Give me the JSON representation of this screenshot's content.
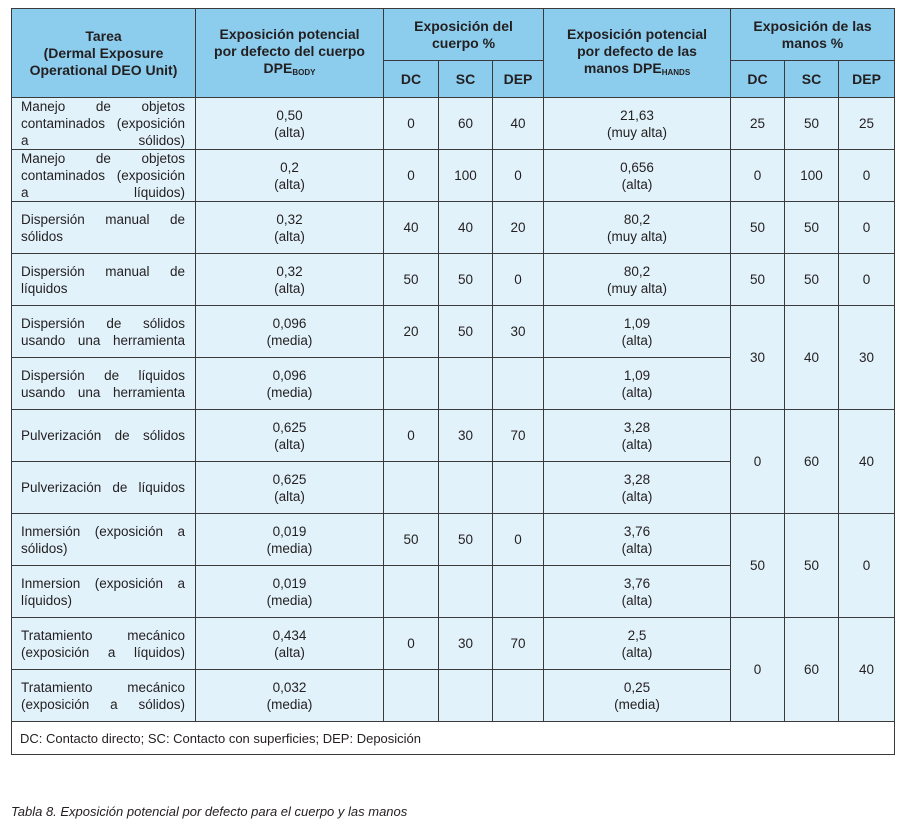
{
  "headers": {
    "task": [
      "Tarea",
      "(Dermal Exposure",
      "Operational DEO Unit)"
    ],
    "dpe_body": [
      "Exposición potencial",
      "por defecto del cuerpo",
      "DPE"
    ],
    "dpe_body_sub": "BODY",
    "body_pct": "Exposición del cuerpo %",
    "dpe_hands": [
      "Exposición potencial",
      "por defecto de las",
      "manos DPE"
    ],
    "dpe_hands_sub": "HANDS",
    "hands_pct": "Exposición de las manos %",
    "dc": "DC",
    "sc": "SC",
    "dep": "DEP"
  },
  "rows": [
    {
      "task": "Manejo de objetos contaminados (exposición a sólidos)",
      "body_val": "0,50",
      "body_level": "(alta)",
      "b": [
        "0",
        "60",
        "40"
      ],
      "hands_val": "21,63",
      "hands_level": "(muy alta)",
      "h": [
        "25",
        "50",
        "25"
      ],
      "hspan": 1
    },
    {
      "task": "Manejo de objetos contaminados (exposición a líquidos)",
      "body_val": "0,2",
      "body_level": "(alta)",
      "b": [
        "0",
        "100",
        "0"
      ],
      "hands_val": "0,656",
      "hands_level": "(alta)",
      "h": [
        "0",
        "100",
        "0"
      ],
      "hspan": 1
    },
    {
      "task": "Dispersión manual de sólidos",
      "body_val": "0,32",
      "body_level": "(alta)",
      "b": [
        "40",
        "40",
        "20"
      ],
      "hands_val": "80,2",
      "hands_level": "(muy alta)",
      "h": [
        "50",
        "50",
        "0"
      ],
      "hspan": 1
    },
    {
      "task": "Dispersión manual de líquidos",
      "body_val": "0,32",
      "body_level": "(alta)",
      "b": [
        "50",
        "50",
        "0"
      ],
      "hands_val": "80,2",
      "hands_level": "(muy alta)",
      "h": [
        "50",
        "50",
        "0"
      ],
      "hspan": 1
    },
    {
      "task": "Dispersión de sólidos usando una herramienta",
      "body_val": "0,096",
      "body_level": "(media)",
      "b": [
        "20",
        "50",
        "30"
      ],
      "hands_val": "1,09",
      "hands_level": "(alta)",
      "h": [
        "30",
        "40",
        "30"
      ],
      "hspan": 2
    },
    {
      "task": "Dispersión de líquidos usando una herramienta",
      "body_val": "0,096",
      "body_level": "(media)",
      "b": [
        "",
        "",
        ""
      ],
      "hands_val": "1,09",
      "hands_level": "(alta)",
      "h": null,
      "hspan": 0
    },
    {
      "task": "Pulverización de sólidos",
      "body_val": "0,625",
      "body_level": "(alta)",
      "b": [
        "0",
        "30",
        "70"
      ],
      "hands_val": "3,28",
      "hands_level": "(alta)",
      "h": [
        "0",
        "60",
        "40"
      ],
      "hspan": 2
    },
    {
      "task": "Pulverización de líquidos",
      "body_val": "0,625",
      "body_level": "(alta)",
      "b": [
        "",
        "",
        ""
      ],
      "hands_val": "3,28",
      "hands_level": "(alta)",
      "h": null,
      "hspan": 0
    },
    {
      "task": "Inmersión (exposición a sólidos)",
      "body_val": "0,019",
      "body_level": "(media)",
      "b": [
        "50",
        "50",
        "0"
      ],
      "hands_val": "3,76",
      "hands_level": "(alta)",
      "h": [
        "50",
        "50",
        "0"
      ],
      "hspan": 2
    },
    {
      "task": "Inmersion (exposición a líquidos)",
      "body_val": "0,019",
      "body_level": "(media)",
      "b": [
        "",
        "",
        ""
      ],
      "hands_val": "3,76",
      "hands_level": "(alta)",
      "h": null,
      "hspan": 0
    },
    {
      "task": "Tratamiento mecánico (exposición a líquidos)",
      "body_val": "0,434",
      "body_level": "(alta)",
      "b": [
        "0",
        "30",
        "70"
      ],
      "hands_val": "2,5",
      "hands_level": "(alta)",
      "h": [
        "0",
        "60",
        "40"
      ],
      "hspan": 2
    },
    {
      "task": "Tratamiento mecánico (exposición a sólidos)",
      "body_val": "0,032",
      "body_level": "(media)",
      "b": [
        "",
        "",
        ""
      ],
      "hands_val": "0,25",
      "hands_level": "(media)",
      "h": null,
      "hspan": 0
    }
  ],
  "footnote": "DC: Contacto directo;  SC: Contacto con superficies;  DEP: Deposición",
  "caption": "Tabla 8. Exposición potencial por defecto para el cuerpo y las manos"
}
